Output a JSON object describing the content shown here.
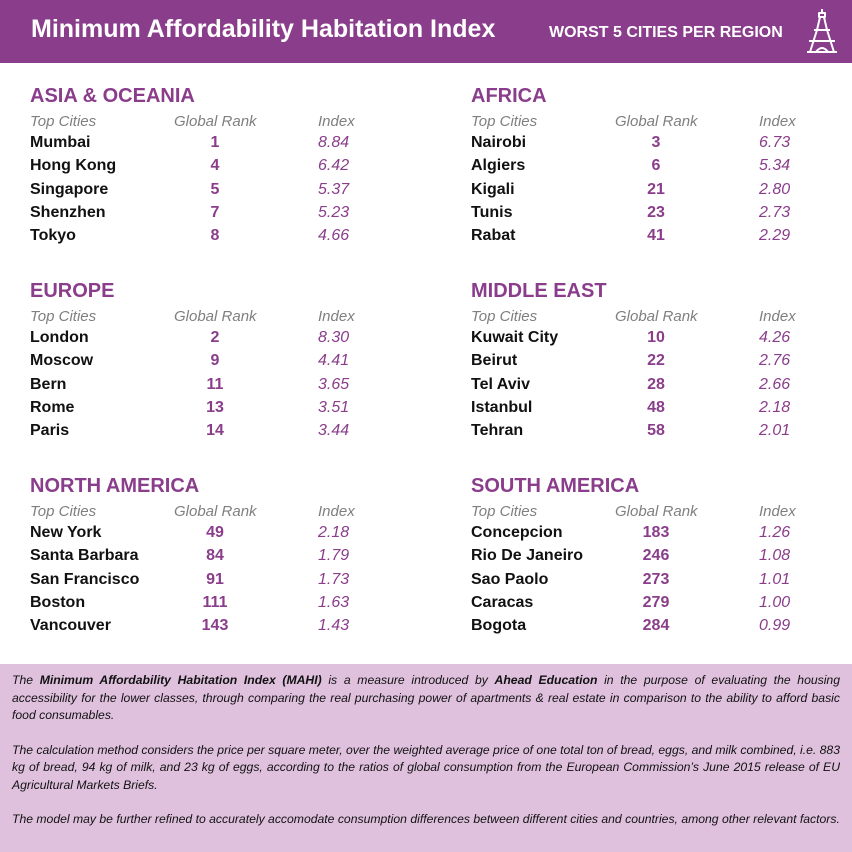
{
  "header": {
    "title": "Minimum Affordability Habitation Index",
    "subtitle": "WORST 5 CITIES PER REGION",
    "logo_icon": "eiffel-tower-icon"
  },
  "colors": {
    "accent": "#8a3d8b",
    "footer_bg": "#dfc1de",
    "header_text": "#ffffff"
  },
  "column_headers": {
    "city": "Top Cities",
    "rank": "Global Rank",
    "index": "Index"
  },
  "chart_data": {
    "type": "table",
    "title": "Minimum Affordability Habitation Index",
    "subtitle": "WORST 5 CITIES PER REGION",
    "columns": [
      "Top Cities",
      "Global Rank",
      "Index"
    ],
    "regions": [
      {
        "name": "ASIA & OCEANIA",
        "rows": [
          {
            "city": "Mumbai",
            "rank": "1",
            "index": "8.84"
          },
          {
            "city": "Hong Kong",
            "rank": "4",
            "index": "6.42"
          },
          {
            "city": "Singapore",
            "rank": "5",
            "index": "5.37"
          },
          {
            "city": "Shenzhen",
            "rank": "7",
            "index": "5.23"
          },
          {
            "city": "Tokyo",
            "rank": "8",
            "index": "4.66"
          }
        ]
      },
      {
        "name": "AFRICA",
        "rows": [
          {
            "city": "Nairobi",
            "rank": "3",
            "index": "6.73"
          },
          {
            "city": "Algiers",
            "rank": "6",
            "index": "5.34"
          },
          {
            "city": "Kigali",
            "rank": "21",
            "index": "2.80"
          },
          {
            "city": "Tunis",
            "rank": "23",
            "index": "2.73"
          },
          {
            "city": "Rabat",
            "rank": "41",
            "index": "2.29"
          }
        ]
      },
      {
        "name": "EUROPE",
        "rows": [
          {
            "city": "London",
            "rank": "2",
            "index": "8.30"
          },
          {
            "city": "Moscow",
            "rank": "9",
            "index": "4.41"
          },
          {
            "city": "Bern",
            "rank": "11",
            "index": "3.65"
          },
          {
            "city": "Rome",
            "rank": "13",
            "index": "3.51"
          },
          {
            "city": "Paris",
            "rank": "14",
            "index": "3.44"
          }
        ]
      },
      {
        "name": "MIDDLE EAST",
        "rows": [
          {
            "city": "Kuwait City",
            "rank": "10",
            "index": "4.26"
          },
          {
            "city": "Beirut",
            "rank": "22",
            "index": "2.76"
          },
          {
            "city": "Tel Aviv",
            "rank": "28",
            "index": "2.66"
          },
          {
            "city": "Istanbul",
            "rank": "48",
            "index": "2.18"
          },
          {
            "city": "Tehran",
            "rank": "58",
            "index": "2.01"
          }
        ]
      },
      {
        "name": "NORTH AMERICA",
        "rows": [
          {
            "city": "New York",
            "rank": "49",
            "index": "2.18"
          },
          {
            "city": "Santa Barbara",
            "rank": "84",
            "index": "1.79"
          },
          {
            "city": "San Francisco",
            "rank": "91",
            "index": "1.73"
          },
          {
            "city": "Boston",
            "rank": "111",
            "index": "1.63"
          },
          {
            "city": "Vancouver",
            "rank": "143",
            "index": "1.43"
          }
        ]
      },
      {
        "name": "SOUTH AMERICA",
        "rows": [
          {
            "city": "Concepcion",
            "rank": "183",
            "index": "1.26"
          },
          {
            "city": "Rio De Janeiro",
            "rank": "246",
            "index": "1.08"
          },
          {
            "city": "Sao Paolo",
            "rank": "273",
            "index": "1.01"
          },
          {
            "city": "Caracas",
            "rank": "279",
            "index": "1.00"
          },
          {
            "city": "Bogota",
            "rank": "284",
            "index": "0.99"
          }
        ]
      }
    ]
  },
  "footer": {
    "p1_pre": "The ",
    "p1_bold1": "Minimum Affordability Habitation Index (MAHI)",
    "p1_mid": " is a measure introduced by ",
    "p1_bold2": "Ahead Education",
    "p1_post": " in the purpose of evaluating the housing accessibility for the lower classes, through comparing the real purchasing power of apartments & real estate in comparison to the ability to afford basic food consumables.",
    "p2": "The calculation method considers the price per square meter, over the weighted average price of one total ton of bread, eggs, and milk combined, i.e. 883 kg of bread, 94 kg of milk, and 23 kg of eggs, according to the ratios of global consumption from the European Commission’s June 2015 release of EU Agricultural Markets Briefs.",
    "p3": "The model may be further refined to accurately accomodate consumption differences between different cities and countries, among other relevant factors."
  }
}
